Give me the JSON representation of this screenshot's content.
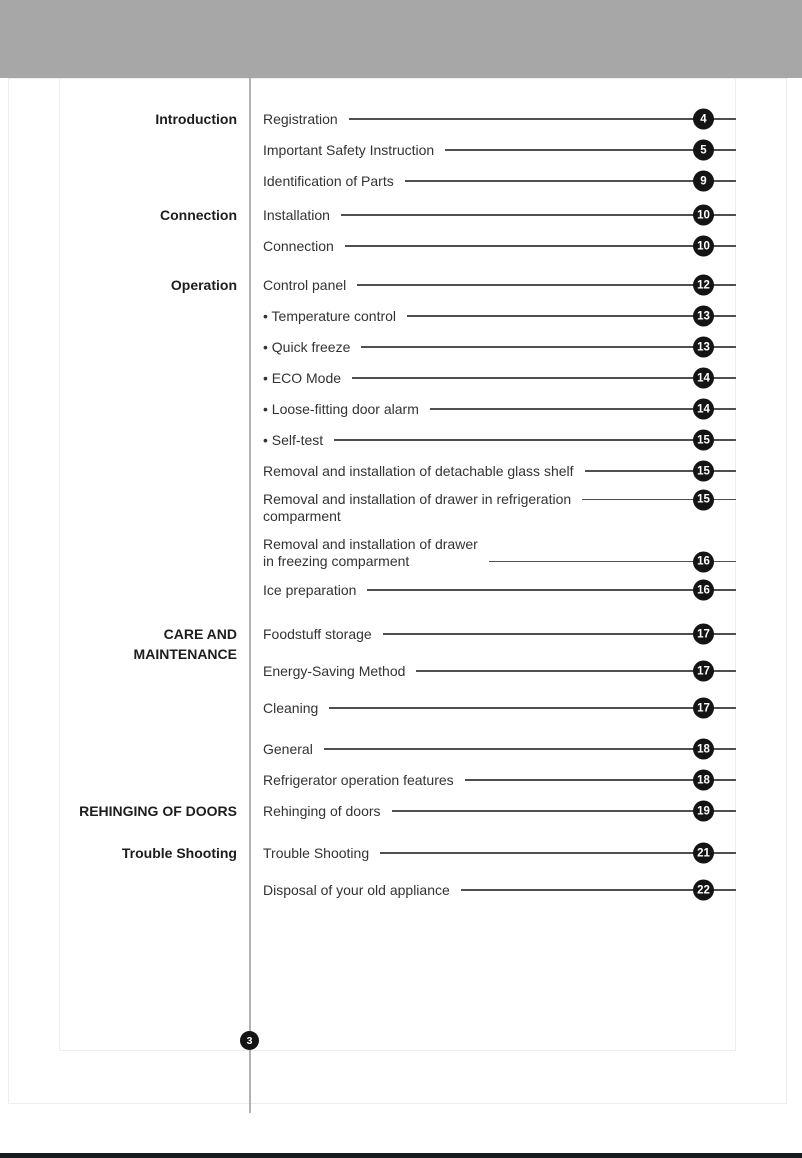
{
  "colors": {
    "header_bar": "#a7a7a7",
    "divider": "#b3b3b3",
    "frame_border": "#ededed",
    "leader_line": "#4f4f4f",
    "badge_bg": "#141414",
    "badge_text": "#ffffff",
    "entry_text": "#333333",
    "label_text": "#1d1d1d",
    "bottom_rule": "#171b1e",
    "page_bg": "#ffffff"
  },
  "footer": {
    "page_number": "3"
  },
  "toc": {
    "groups": [
      {
        "label": "Introduction",
        "entries": [
          {
            "label": "Registration",
            "page": "4"
          },
          {
            "label": "Important Safety Instruction",
            "page": "5"
          },
          {
            "label": "Identification of Parts",
            "page": "9"
          }
        ]
      },
      {
        "label": "Connection",
        "entries": [
          {
            "label": "Installation",
            "page": "10"
          },
          {
            "label": "Connection",
            "page": "10"
          }
        ]
      },
      {
        "label": "Operation",
        "entries": [
          {
            "label": "Control panel",
            "page": "12"
          },
          {
            "label": "• Temperature control",
            "page": "13"
          },
          {
            "label": "• Quick freeze",
            "page": "13"
          },
          {
            "label": "• ECO Mode",
            "page": "14"
          },
          {
            "label": "• Loose-fitting door alarm",
            "page": "14"
          },
          {
            "label": "• Self-test",
            "page": "15"
          },
          {
            "label": "Removal and installation of detachable glass shelf",
            "page": "15"
          },
          {
            "lines": [
              "Removal and installation of drawer in refrigeration",
              "comparment"
            ],
            "leader_align": "top",
            "page": "15"
          },
          {
            "lines": [
              "Removal and installation of drawer",
              "in freezing comparment"
            ],
            "leader_align": "bottom",
            "page": "16"
          },
          {
            "label": "Ice preparation",
            "page": "16"
          }
        ]
      },
      {
        "label": "CARE AND MAINTENANCE",
        "entries": [
          {
            "label": "Foodstuff storage",
            "page": "17"
          },
          {
            "label": "Energy-Saving Method",
            "page": "17"
          },
          {
            "label": "Cleaning",
            "page": "17"
          }
        ]
      },
      {
        "label": "",
        "entries": [
          {
            "label": "General",
            "page": "18"
          },
          {
            "label": "Refrigerator operation features",
            "page": "18"
          }
        ]
      },
      {
        "label": "REHINGING OF DOORS",
        "entries": [
          {
            "label": "Rehinging of doors",
            "page": "19"
          }
        ]
      },
      {
        "label": "Trouble Shooting",
        "entries": [
          {
            "label": "Trouble Shooting",
            "page": "21"
          },
          {
            "label": "Disposal of your old appliance",
            "page": "22"
          }
        ]
      }
    ]
  }
}
